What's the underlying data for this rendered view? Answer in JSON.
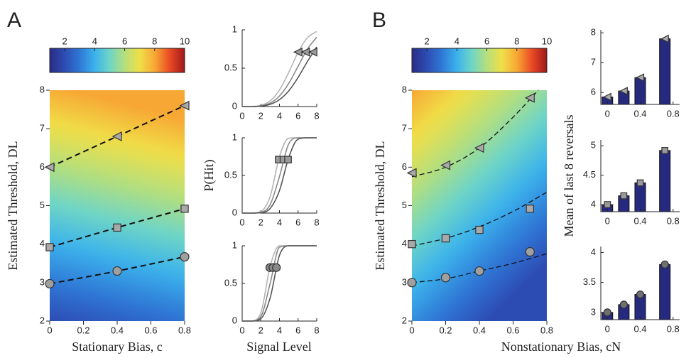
{
  "panel_labels": [
    "A",
    "B"
  ],
  "chart_data": [
    {
      "type": "colorbar",
      "colormap": [
        "#2b2c86",
        "#2d4cb3",
        "#2f78d6",
        "#3bb2ec",
        "#6fd5c6",
        "#b5df7c",
        "#f0df48",
        "#f7a834",
        "#ea4a25",
        "#a0181a"
      ],
      "xlim": [
        1,
        10
      ],
      "xticks": [
        2,
        4,
        6,
        8,
        10
      ]
    },
    {
      "type": "scatter",
      "xlabel": "Stationary Bias, c",
      "ylabel": "Estimated Threshold, DL",
      "xlim": [
        0,
        0.8
      ],
      "ylim": [
        2,
        8
      ],
      "xticks": [
        0,
        0.2,
        0.4,
        0.6,
        0.8
      ],
      "yticks": [
        2,
        3,
        4,
        5,
        6,
        7,
        8
      ],
      "line_style": "dashed",
      "series": [
        {
          "marker": "triangle",
          "color": "#a9a9a9",
          "x": [
            0,
            0.4,
            0.8
          ],
          "values": [
            6.0,
            6.8,
            7.6
          ]
        },
        {
          "marker": "square",
          "color": "#a9a9a9",
          "x": [
            0,
            0.4,
            0.8
          ],
          "values": [
            3.92,
            4.43,
            4.92
          ]
        },
        {
          "marker": "circle",
          "color": "#a0a0a0",
          "x": [
            0,
            0.4,
            0.8
          ],
          "values": [
            2.97,
            3.3,
            3.67
          ]
        }
      ]
    },
    {
      "type": "line",
      "x": [
        0,
        1,
        2,
        3,
        4,
        5,
        6,
        7,
        8
      ],
      "xlim": [
        0,
        8
      ],
      "ylim": [
        0,
        1
      ],
      "xticks": [
        0,
        2,
        4,
        6,
        8
      ],
      "yticks": [
        0,
        0.5,
        1
      ],
      "series": [
        {
          "color": "#b4b4b4",
          "values": [
            0,
            0.001,
            0.015,
            0.074,
            0.216,
            0.447,
            0.707,
            0.897,
            0.979
          ]
        },
        {
          "color": "#8a8a8a",
          "values": [
            0,
            0,
            0.009,
            0.045,
            0.137,
            0.302,
            0.525,
            0.748,
            0.905
          ]
        },
        {
          "color": "#555555",
          "values": [
            0,
            0,
            0.006,
            0.029,
            0.09,
            0.205,
            0.379,
            0.587,
            0.778
          ]
        }
      ],
      "points": {
        "marker": "triangle",
        "color": "#9a9a9a",
        "x": [
          6.0,
          6.8,
          7.6
        ],
        "values": [
          0.71,
          0.71,
          0.71
        ]
      }
    },
    {
      "type": "line",
      "ylabel": "P(Hit)",
      "x": [
        0,
        1,
        2,
        3,
        4,
        5,
        6,
        7,
        8
      ],
      "xlim": [
        0,
        8
      ],
      "ylim": [
        0,
        1
      ],
      "xticks": [
        0,
        2,
        4,
        6,
        8
      ],
      "yticks": [
        0,
        0.5,
        1
      ],
      "series": [
        {
          "color": "#b4b4b4",
          "values": [
            0,
            0,
            0.021,
            0.219,
            0.75,
            0.995,
            1,
            1,
            1
          ]
        },
        {
          "color": "#8a8a8a",
          "values": [
            0,
            0,
            0.01,
            0.112,
            0.486,
            0.921,
            1,
            1,
            1
          ]
        },
        {
          "color": "#555555",
          "values": [
            0,
            0,
            0.005,
            0.061,
            0.298,
            0.741,
            0.982,
            1,
            1
          ]
        }
      ],
      "points": {
        "marker": "square",
        "color": "#9a9a9a",
        "x": [
          3.92,
          4.43,
          4.92
        ],
        "values": [
          0.71,
          0.71,
          0.71
        ]
      }
    },
    {
      "type": "line",
      "xlabel": "Signal Level",
      "x": [
        0,
        1,
        2,
        3,
        4,
        5,
        6,
        7,
        8
      ],
      "xlim": [
        0,
        8
      ],
      "ylim": [
        0,
        1
      ],
      "xticks": [
        0,
        2,
        4,
        6,
        8
      ],
      "yticks": [
        0,
        0.5,
        1
      ],
      "series": [
        {
          "color": "#b4b4b4",
          "values": [
            0,
            0.002,
            0.108,
            0.728,
            1,
            1,
            1,
            1,
            1
          ]
        },
        {
          "color": "#8a8a8a",
          "values": [
            0,
            0.001,
            0.059,
            0.5,
            0.98,
            1,
            1,
            1,
            1
          ]
        },
        {
          "color": "#555555",
          "values": [
            0,
            0,
            0.032,
            0.307,
            0.873,
            1,
            1,
            1,
            1
          ]
        }
      ],
      "points": {
        "marker": "circle",
        "color": "#8a8a8a",
        "x": [
          2.97,
          3.3,
          3.67
        ],
        "values": [
          0.71,
          0.71,
          0.71
        ]
      }
    },
    {
      "type": "colorbar",
      "colormap": [
        "#2b2c86",
        "#2d4cb3",
        "#2f78d6",
        "#3bb2ec",
        "#6fd5c6",
        "#b5df7c",
        "#f0df48",
        "#f7a834",
        "#ea4a25",
        "#a0181a"
      ],
      "xlim": [
        1,
        10
      ],
      "xticks": [
        2,
        4,
        6,
        8,
        10
      ]
    },
    {
      "type": "scatter",
      "xlabel": "Nonstationary Bias, cN",
      "ylabel": "Estimated Threshold, DL",
      "xlim": [
        0,
        0.8
      ],
      "ylim": [
        2,
        8
      ],
      "xticks": [
        0,
        0.2,
        0.4,
        0.6,
        0.8
      ],
      "yticks": [
        2,
        3,
        4,
        5,
        6,
        7,
        8
      ],
      "line_style": "dashed",
      "series": [
        {
          "marker": "triangle",
          "color": "#a9a9a9",
          "x": [
            0,
            0.2,
            0.4,
            0.7
          ],
          "values": [
            5.85,
            6.05,
            6.5,
            7.8
          ],
          "fit_x": [
            0,
            0.2,
            0.4,
            0.6,
            0.75
          ],
          "fit_values": [
            5.75,
            6.0,
            6.5,
            7.3,
            8.0
          ]
        },
        {
          "marker": "square",
          "color": "#a9a9a9",
          "x": [
            0,
            0.2,
            0.4,
            0.7
          ],
          "values": [
            4.0,
            4.15,
            4.37,
            4.92
          ],
          "fit_x": [
            0,
            0.2,
            0.4,
            0.6,
            0.8
          ],
          "fit_values": [
            3.95,
            4.15,
            4.45,
            4.85,
            5.35
          ]
        },
        {
          "marker": "circle",
          "color": "#a0a0a0",
          "x": [
            0,
            0.2,
            0.4,
            0.7
          ],
          "values": [
            3.0,
            3.13,
            3.3,
            3.8
          ],
          "fit_x": [
            0,
            0.2,
            0.4,
            0.6,
            0.8
          ],
          "fit_values": [
            3.0,
            3.1,
            3.3,
            3.5,
            3.75
          ]
        }
      ]
    },
    {
      "type": "bar",
      "x": [
        0,
        0.2,
        0.4,
        0.7
      ],
      "values": [
        5.85,
        6.05,
        6.5,
        7.8
      ],
      "xlim": [
        -0.08,
        0.88
      ],
      "ylim": [
        5.6,
        8.1
      ],
      "xticks": [
        0,
        0.4,
        0.8
      ],
      "yticks": [
        6,
        7,
        8
      ],
      "color": "#262a7e",
      "marker": "triangle",
      "marker_color": "#a9a9a9"
    },
    {
      "type": "bar",
      "ylabel": "Mean of last 8 reversals",
      "x": [
        0,
        0.2,
        0.4,
        0.7
      ],
      "values": [
        4.0,
        4.15,
        4.37,
        4.92
      ],
      "xlim": [
        -0.08,
        0.88
      ],
      "ylim": [
        3.88,
        5.1
      ],
      "xticks": [
        0,
        0.4,
        0.8
      ],
      "yticks": [
        4,
        4.5,
        5
      ],
      "color": "#262a7e",
      "marker": "square",
      "marker_color": "#9a9a9a"
    },
    {
      "type": "bar",
      "x": [
        0,
        0.2,
        0.4,
        0.7
      ],
      "values": [
        3.0,
        3.13,
        3.3,
        3.8
      ],
      "xlim": [
        -0.08,
        0.88
      ],
      "ylim": [
        2.88,
        4.1
      ],
      "xticks": [
        0,
        0.4,
        0.8
      ],
      "yticks": [
        3,
        3.5,
        4
      ],
      "color": "#262a7e",
      "marker": "circle",
      "marker_color": "#707070"
    }
  ]
}
